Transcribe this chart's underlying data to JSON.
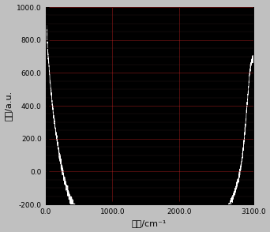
{
  "title": "",
  "xlabel": "波数/cm⁻¹",
  "ylabel": "强度/a.u.",
  "xlim": [
    0.0,
    3100.0
  ],
  "ylim": [
    -200.0,
    1000.0
  ],
  "xticks": [
    0.0,
    1000.0,
    2000.0,
    3100.0
  ],
  "yticks": [
    -200.0,
    0.0,
    200.0,
    400.0,
    600.0,
    800.0,
    1000.0
  ],
  "line_color": "#ffffff",
  "bg_color": "#000000",
  "fig_bg_color": "#c0c0c0",
  "grid_color_major": "#cc2222",
  "grid_color_minor": "#553333",
  "grid_alpha": 0.8,
  "figsize": [
    3.42,
    2.94
  ],
  "dpi": 100
}
